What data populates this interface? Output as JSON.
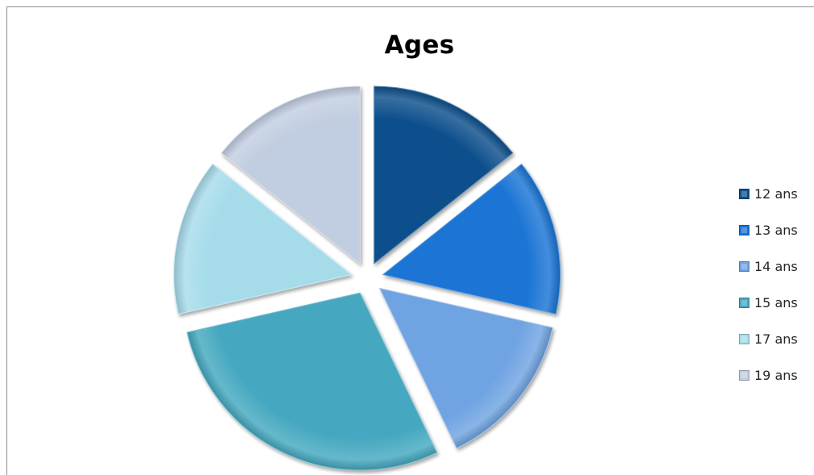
{
  "chart_data": {
    "type": "pie",
    "title": "Ages",
    "categories": [
      "12 ans",
      "13 ans",
      "14 ans",
      "15 ans",
      "17 ans",
      "19 ans"
    ],
    "values": [
      1,
      1,
      1,
      2,
      1,
      1
    ],
    "colors": [
      "#0d4f8c",
      "#1a74d4",
      "#6fa3e2",
      "#45a8c0",
      "#a6dcea",
      "#c1cde0"
    ],
    "exploded": true,
    "legend_position": "right"
  }
}
